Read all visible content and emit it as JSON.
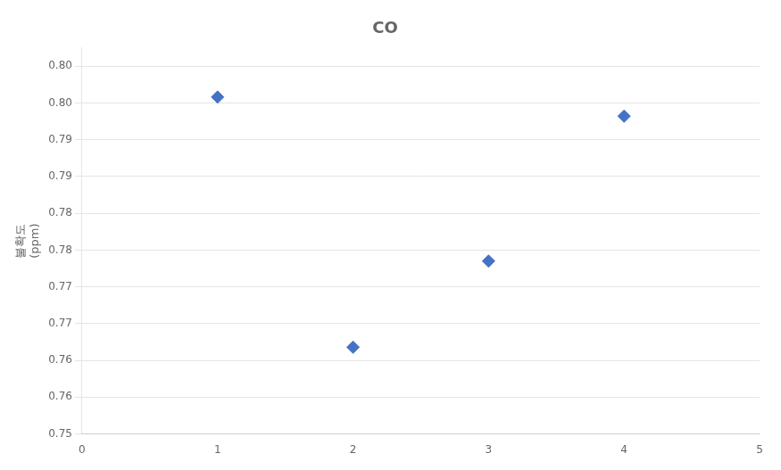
{
  "chart_data": {
    "type": "scatter",
    "title": "CO",
    "ylabel": "불확도\n(ppm)",
    "x": [
      1,
      2,
      3,
      4
    ],
    "values": [
      0.7958,
      0.7618,
      0.7735,
      0.7932
    ],
    "color": "#4472C4",
    "marker": "diamond",
    "xlim": [
      0,
      5
    ],
    "xticks": [
      0,
      1,
      2,
      3,
      4,
      5
    ],
    "ylim": [
      0.75,
      0.8025
    ],
    "yticks": [
      0.75,
      {
        "value": 0.755,
        "label": "0.76"
      },
      0.76,
      {
        "value": 0.765,
        "label": "0.77"
      },
      0.77,
      {
        "value": 0.775,
        "label": "0.78"
      },
      0.78,
      {
        "value": 0.785,
        "label": "0.79"
      },
      0.79,
      {
        "value": 0.795,
        "label": "0.80"
      },
      {
        "value": 0.8,
        "label": "0.80"
      }
    ],
    "grid": "y"
  }
}
